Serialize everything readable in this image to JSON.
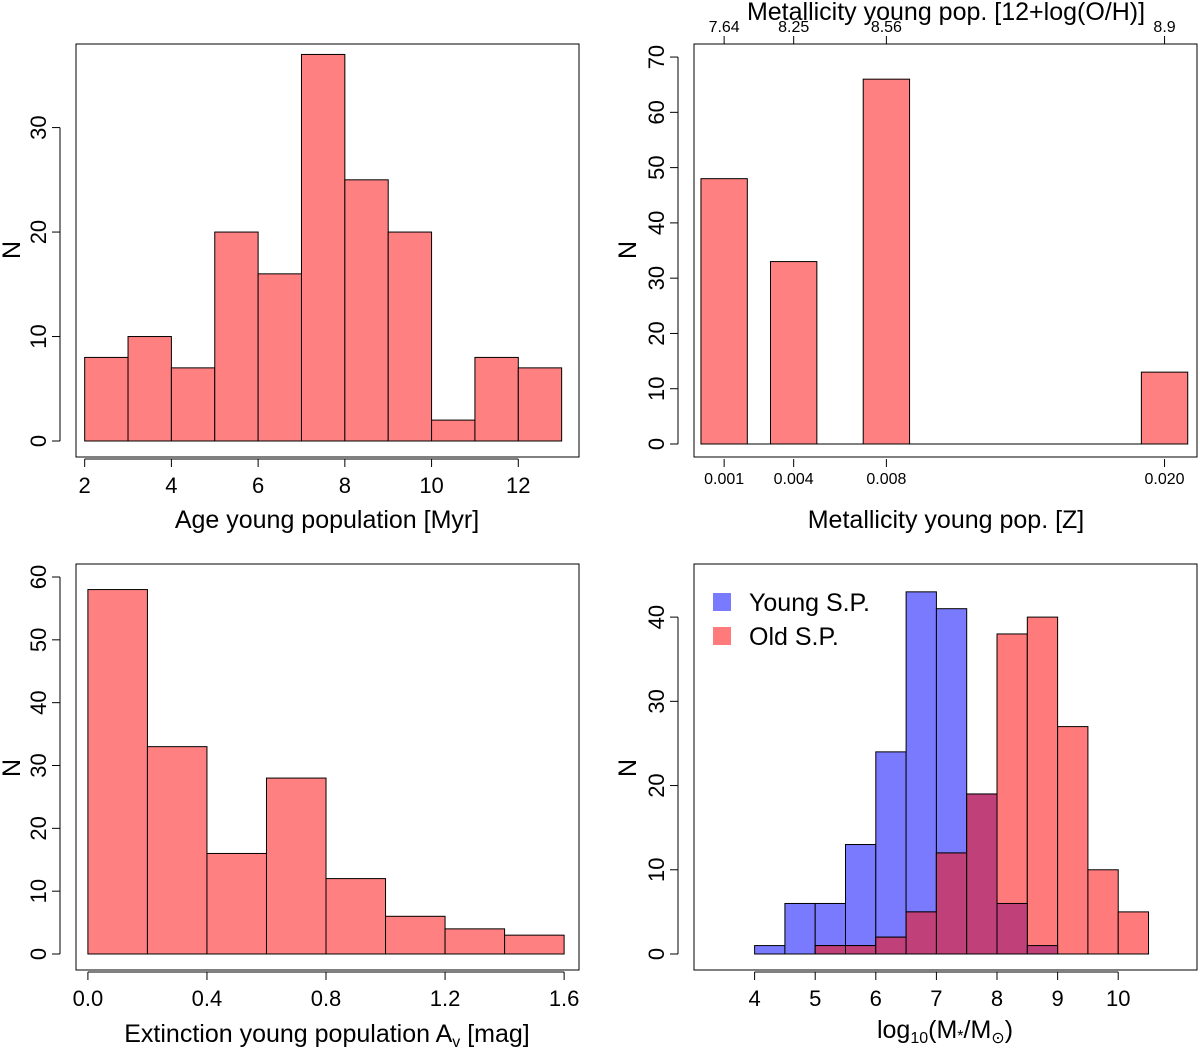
{
  "figure": {
    "background": "#ffffff"
  },
  "chart_data": [
    {
      "id": "age",
      "type": "bar",
      "title": "",
      "xlabel": "Age young population [Myr]",
      "ylabel": "N",
      "bin_edges": [
        2,
        3,
        4,
        5,
        6,
        7,
        8,
        9,
        10,
        11,
        12,
        13
      ],
      "series": [
        {
          "name": "Age",
          "color": "#ff8080",
          "values": [
            8,
            10,
            7,
            20,
            16,
            37,
            25,
            20,
            2,
            8,
            7
          ]
        }
      ],
      "xlim": [
        1.8,
        13.4
      ],
      "ylim": [
        0,
        38
      ],
      "xticks": [
        2,
        4,
        6,
        8,
        10,
        12
      ],
      "xtick_labels": [
        "2",
        "4",
        "6",
        "8",
        "10",
        "12"
      ],
      "yticks": [
        0,
        10,
        20,
        30
      ],
      "ytick_labels": [
        "0",
        "10",
        "20",
        "30"
      ]
    },
    {
      "id": "metallicity",
      "type": "bar",
      "title": "",
      "xlabel": "Metallicity young pop. [Z]",
      "ylabel": "N",
      "top_xlabel": "Metallicity young pop. [12+log(O/H)]",
      "categories": [
        "0.001",
        "0.004",
        "0.008",
        "0.020"
      ],
      "category_positions": [
        0.001,
        0.004,
        0.008,
        0.02
      ],
      "bar_width": 0.004,
      "series": [
        {
          "name": "Metallicity",
          "color": "#ff8080",
          "values": [
            48,
            33,
            66,
            13
          ]
        }
      ],
      "xlim": [
        -0.0003,
        0.0214
      ],
      "ylim": [
        0,
        72
      ],
      "xtick_labels": [
        "0.001",
        "0.004",
        "0.008",
        "0.020"
      ],
      "top_tick_labels": [
        "7.64",
        "8.25",
        "8.56",
        "8.9"
      ],
      "yticks": [
        0,
        10,
        20,
        30,
        40,
        50,
        60,
        70
      ],
      "ytick_labels": [
        "0",
        "10",
        "20",
        "30",
        "40",
        "50",
        "60",
        "70"
      ]
    },
    {
      "id": "extinction",
      "type": "bar",
      "title": "",
      "xlabel": "Extinction young population A",
      "xlabel_sub": "v",
      "xlabel_unit": " [mag]",
      "ylabel": "N",
      "bin_edges": [
        0.0,
        0.2,
        0.4,
        0.6,
        0.8,
        1.0,
        1.2,
        1.4,
        1.6
      ],
      "series": [
        {
          "name": "Extinction",
          "color": "#ff8080",
          "values": [
            58,
            33,
            16,
            28,
            12,
            6,
            4,
            3
          ]
        }
      ],
      "xlim": [
        -0.04,
        1.65
      ],
      "ylim": [
        0,
        60
      ],
      "xticks": [
        0.0,
        0.4,
        0.8,
        1.2,
        1.6
      ],
      "xtick_labels": [
        "0.0",
        "0.4",
        "0.8",
        "1.2",
        "1.6"
      ],
      "yticks": [
        0,
        10,
        20,
        30,
        40,
        50,
        60
      ],
      "ytick_labels": [
        "0",
        "10",
        "20",
        "30",
        "40",
        "50",
        "60"
      ]
    },
    {
      "id": "mass",
      "type": "bar",
      "title": "",
      "xlabel": "log",
      "xlabel_sub": "10",
      "xlabel_rest": "(M",
      "xlabel_star": "*",
      "xlabel_slash": "/M",
      "xlabel_sun": "⊙",
      "xlabel_end": ")",
      "ylabel": "N",
      "bin_edges": [
        4.0,
        4.5,
        5.0,
        5.5,
        6.0,
        6.5,
        7.0,
        7.5,
        8.0,
        8.5,
        9.0,
        9.5,
        10.0,
        10.5
      ],
      "series": [
        {
          "name": "Young S.P.",
          "color": "#7a7aff",
          "values": [
            1,
            6,
            6,
            13,
            24,
            43,
            41,
            19,
            6,
            1,
            0,
            0,
            0
          ]
        },
        {
          "name": "Old S.P.",
          "color": "#ff7a7a",
          "values": [
            0,
            0,
            1,
            1,
            2,
            5,
            12,
            19,
            38,
            40,
            27,
            10,
            5
          ]
        }
      ],
      "overlap_color": "#c0407a",
      "legend_position": "top-left",
      "xlim": [
        3.0,
        11.3
      ],
      "ylim": [
        0,
        45
      ],
      "xticks": [
        4,
        5,
        6,
        7,
        8,
        9,
        10
      ],
      "xtick_labels": [
        "4",
        "5",
        "6",
        "7",
        "8",
        "9",
        "10"
      ],
      "yticks": [
        0,
        10,
        20,
        30,
        40
      ],
      "ytick_labels": [
        "0",
        "10",
        "20",
        "30",
        "40"
      ]
    }
  ]
}
